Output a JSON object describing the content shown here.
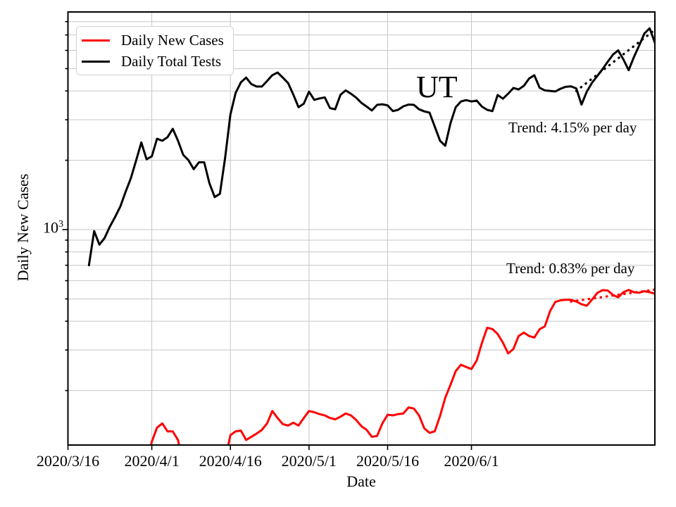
{
  "figure": {
    "background": "#ffffff",
    "grid_color": "#c6c6c6",
    "spine_color": "#000000"
  },
  "chart_data": {
    "type": "line",
    "title": "",
    "xlabel": "Date",
    "ylabel": "Daily New Cases",
    "yscale": "log",
    "grid": true,
    "legend_position": "upper left",
    "xlim": [
      "2020-03-16",
      "2020-07-06"
    ],
    "ylim": [
      116,
      8810
    ],
    "x_tick_dates": [
      "2020-03-16",
      "2020-04-01",
      "2020-04-16",
      "2020-05-01",
      "2020-05-16",
      "2020-06-01"
    ],
    "x_tick_labels": [
      "2020/3/16",
      "2020/4/1",
      "2020/4/16",
      "2020/5/1",
      "2020/5/16",
      "2020/6/1"
    ],
    "y_tick": {
      "base": "10",
      "exp": "3",
      "value": 1000
    },
    "y_gridlines": [
      200,
      300,
      400,
      500,
      600,
      700,
      800,
      900,
      1000,
      2000,
      3000,
      4000,
      5000,
      6000,
      7000,
      8000
    ],
    "series": [
      {
        "name": "Daily New Cases",
        "color": "#ff0000",
        "start_date": "2020-03-31",
        "values": [
          95,
          120,
          138,
          144,
          133,
          133,
          122,
          95,
          null,
          null,
          null,
          null,
          null,
          null,
          null,
          100,
          128,
          133,
          134,
          122,
          126,
          130,
          135,
          144,
          163,
          152,
          143,
          141,
          145,
          141,
          152,
          163,
          161,
          158,
          156,
          152,
          150,
          154,
          159,
          156,
          149,
          140,
          135,
          126,
          127,
          144,
          157,
          156,
          158,
          159,
          169,
          167,
          156,
          137,
          131,
          133,
          155,
          186,
          212,
          243,
          259,
          253,
          248,
          270,
          322,
          375,
          370,
          352,
          323,
          290,
          303,
          345,
          357,
          345,
          340,
          369,
          380,
          443,
          485,
          493,
          496,
          495,
          487,
          474,
          467,
          496,
          530,
          546,
          544,
          520,
          508,
          535,
          547,
          535,
          532,
          540,
          535,
          527
        ]
      },
      {
        "name": "Daily Total Tests",
        "color": "#000000",
        "start_date": "2020-03-20",
        "values": [
          700,
          985,
          860,
          920,
          1030,
          1135,
          1260,
          1460,
          1670,
          1990,
          2390,
          2020,
          2080,
          2480,
          2430,
          2520,
          2740,
          2430,
          2110,
          2000,
          1830,
          1960,
          1960,
          1590,
          1385,
          1430,
          2060,
          3160,
          3920,
          4360,
          4570,
          4280,
          4180,
          4180,
          4420,
          4680,
          4810,
          4570,
          4330,
          3860,
          3400,
          3520,
          3970,
          3660,
          3710,
          3750,
          3370,
          3330,
          3850,
          4020,
          3890,
          3740,
          3550,
          3420,
          3290,
          3480,
          3500,
          3460,
          3270,
          3310,
          3430,
          3490,
          3480,
          3330,
          3260,
          3220,
          2800,
          2430,
          2310,
          2900,
          3400,
          3600,
          3650,
          3600,
          3630,
          3420,
          3310,
          3270,
          3840,
          3700,
          3890,
          4120,
          4060,
          4210,
          4530,
          4680,
          4130,
          4020,
          4000,
          3980,
          4090,
          4170,
          4190,
          4100,
          3490,
          3970,
          4340,
          4640,
          4970,
          5350,
          5750,
          6000,
          5480,
          4920,
          5610,
          6300,
          7100,
          7480,
          6480
        ]
      }
    ],
    "trend_lines": [
      {
        "series": "Daily Total Tests",
        "rate_per_day_percent": 4.15,
        "color": "#000000",
        "start_date": "2020-06-21",
        "start_value": 4000,
        "end_date": "2020-07-06",
        "end_value": 7370
      },
      {
        "series": "Daily New Cases",
        "rate_per_day_percent": 0.83,
        "color": "#ff0000",
        "start_date": "2020-06-20",
        "start_value": 487,
        "end_date": "2020-07-06",
        "end_value": 549
      }
    ],
    "annotations": {
      "state_label": {
        "text": "UT"
      },
      "trend_tests": {
        "text": "Trend: 4.15% per day"
      },
      "trend_cases": {
        "text": "Trend: 0.83% per day"
      }
    }
  }
}
